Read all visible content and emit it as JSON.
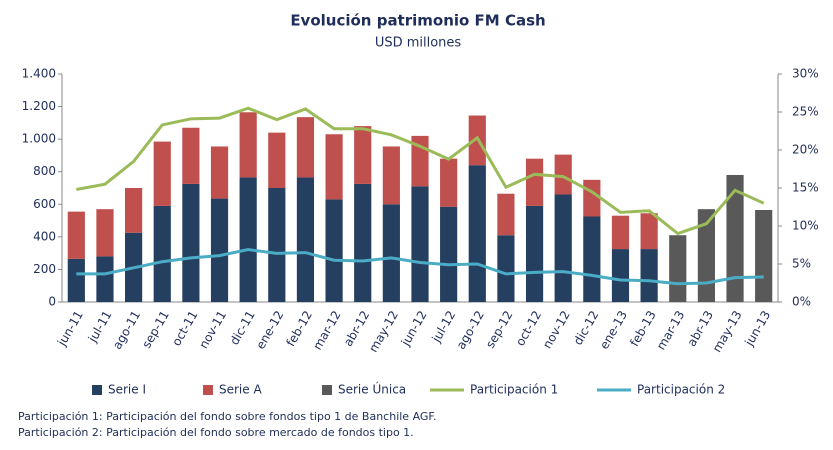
{
  "chart_data": {
    "type": "bar",
    "stacked": true,
    "title": "Evolución patrimonio FM Cash",
    "subtitle": "USD millones",
    "categories": [
      "jun-11",
      "jul-11",
      "ago-11",
      "sep-11",
      "oct-11",
      "nov-11",
      "dic-11",
      "ene-12",
      "feb-12",
      "mar-12",
      "abr-12",
      "may-12",
      "jun-12",
      "jul-12",
      "ago-12",
      "sep-12",
      "oct-12",
      "nov-12",
      "dic-12",
      "ene-13",
      "feb-13",
      "mar-13",
      "abr-13",
      "may-13",
      "jun-13"
    ],
    "series": [
      {
        "name": "Serie I",
        "color": "#243f60",
        "type": "bar",
        "values": [
          265,
          280,
          425,
          590,
          725,
          635,
          765,
          700,
          765,
          630,
          725,
          600,
          710,
          585,
          840,
          410,
          590,
          660,
          525,
          325,
          325,
          null,
          null,
          null,
          null
        ]
      },
      {
        "name": "Serie A",
        "color": "#c0504d",
        "type": "bar",
        "values": [
          290,
          290,
          275,
          395,
          345,
          320,
          400,
          340,
          370,
          400,
          355,
          355,
          310,
          295,
          305,
          255,
          290,
          245,
          225,
          205,
          220,
          null,
          null,
          null,
          null
        ]
      },
      {
        "name": "Serie Única",
        "color": "#595959",
        "type": "bar",
        "values": [
          null,
          null,
          null,
          null,
          null,
          null,
          null,
          null,
          null,
          null,
          null,
          null,
          null,
          null,
          null,
          null,
          null,
          null,
          null,
          null,
          null,
          410,
          570,
          780,
          565
        ]
      },
      {
        "name": "Participación 1",
        "color": "#9bbb59",
        "type": "line",
        "axis": "y2",
        "values": [
          14.8,
          15.5,
          18.5,
          23.3,
          24.1,
          24.2,
          25.5,
          24.0,
          25.4,
          22.8,
          22.8,
          22.0,
          20.5,
          18.8,
          21.6,
          15.1,
          16.8,
          16.5,
          14.5,
          11.8,
          12.0,
          9.0,
          10.3,
          14.7,
          13.0
        ]
      },
      {
        "name": "Participación 2",
        "color": "#4bacc6",
        "type": "line",
        "axis": "y2",
        "values": [
          3.7,
          3.7,
          4.5,
          5.3,
          5.8,
          6.1,
          6.9,
          6.4,
          6.5,
          5.5,
          5.4,
          5.8,
          5.2,
          4.9,
          5.0,
          3.7,
          3.9,
          4.0,
          3.5,
          2.9,
          2.8,
          2.4,
          2.5,
          3.2,
          3.3
        ]
      }
    ],
    "ylim": [
      0,
      1400
    ],
    "yticks": [
      0,
      200,
      400,
      600,
      800,
      {
        "value": 1000,
        "label": "1.000"
      },
      {
        "value": 1200,
        "label": "1.200"
      },
      {
        "value": 1400,
        "label": "1.400"
      }
    ],
    "y2lim": [
      0,
      30
    ],
    "y2ticks": [
      {
        "value": 0,
        "label": "0%"
      },
      {
        "value": 5,
        "label": "5%"
      },
      {
        "value": 10,
        "label": "10%"
      },
      {
        "value": 15,
        "label": "15%"
      },
      {
        "value": 20,
        "label": "20%"
      },
      {
        "value": 25,
        "label": "25%"
      },
      {
        "value": 30,
        "label": "30%"
      }
    ],
    "legend": "bottom",
    "notes": [
      "Participación 1: Participación del fondo sobre fondos tipo 1 de Banchile AGF.",
      "Participación 2: Participación del fondo sobre mercado de fondos tipo 1."
    ]
  }
}
